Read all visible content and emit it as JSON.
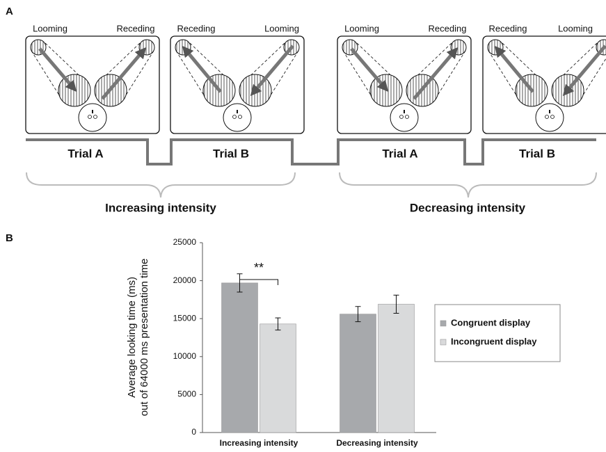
{
  "panel_a": {
    "label": "A",
    "screens": [
      {
        "left": "Looming",
        "right": "Receding"
      },
      {
        "left": "Receding",
        "right": "Looming"
      },
      {
        "left": "Looming",
        "right": "Receding"
      },
      {
        "left": "Receding",
        "right": "Looming"
      }
    ],
    "trials": [
      "Trial A",
      "Trial B",
      "Trial A",
      "Trial B"
    ],
    "groups": [
      "Increasing intensity",
      "Decreasing intensity"
    ]
  },
  "chart_data": {
    "type": "bar",
    "panel_label": "B",
    "y_label": [
      "Average looking time (ms)",
      "out of 64000 ms presentation time"
    ],
    "categories": [
      "Increasing intensity",
      "Decreasing intensity"
    ],
    "series": [
      {
        "name": "Congruent display",
        "color": "#a7a9ac",
        "values": [
          19700,
          15600
        ],
        "errors": [
          1200,
          1000
        ]
      },
      {
        "name": "Incongruent display",
        "color": "#d9dadb",
        "values": [
          14300,
          16900
        ],
        "errors": [
          800,
          1200
        ]
      }
    ],
    "annotation": "**",
    "ylim": [
      0,
      25000
    ],
    "yticks": [
      0,
      5000,
      10000,
      15000,
      20000,
      25000
    ],
    "grid": false,
    "legend": "right"
  }
}
